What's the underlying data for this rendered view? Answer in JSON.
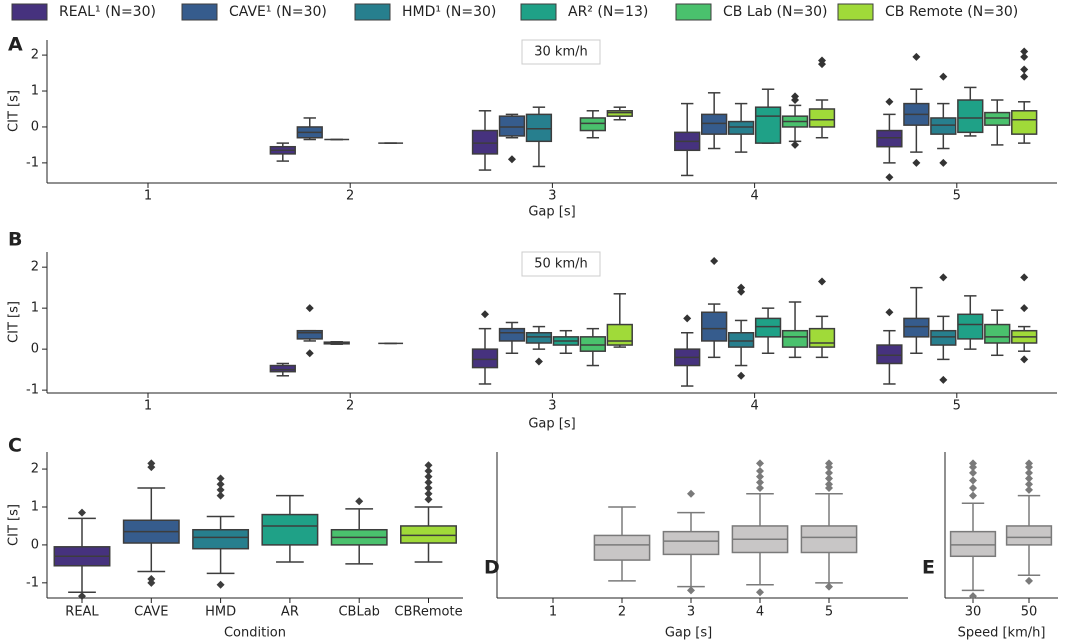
{
  "chart_data": [
    {
      "type": "box",
      "label": "A",
      "annotation": "30 km/h",
      "xlabel": "Gap [s]",
      "ylabel": "CIT [s]",
      "categories": [
        "1",
        "2",
        "3",
        "4",
        "5"
      ],
      "ylim": [
        -1.56,
        2.42
      ],
      "yticks": [
        -1,
        0,
        1,
        2
      ],
      "series": [
        {
          "name": "REAL¹ (N=30)",
          "color": "#46327e",
          "boxes": [
            null,
            {
              "q1": -0.75,
              "med": -0.65,
              "q3": -0.55,
              "lo": -0.95,
              "hi": -0.45
            },
            {
              "q1": -0.75,
              "med": -0.45,
              "q3": -0.1,
              "lo": -1.2,
              "hi": 0.45
            },
            {
              "q1": -0.65,
              "med": -0.4,
              "q3": -0.15,
              "lo": -1.35,
              "hi": 0.65
            },
            {
              "q1": -0.55,
              "med": -0.3,
              "q3": -0.1,
              "lo": -1.0,
              "hi": 0.35,
              "out": [
                0.7,
                -1.4
              ]
            }
          ]
        },
        {
          "name": "CAVE¹ (N=30)",
          "color": "#365c8d",
          "boxes": [
            null,
            {
              "q1": -0.3,
              "med": -0.15,
              "q3": 0.0,
              "lo": -0.35,
              "hi": 0.25
            },
            {
              "q1": -0.25,
              "med": 0.0,
              "q3": 0.3,
              "lo": -0.3,
              "hi": 0.35,
              "out": [
                -0.9
              ]
            },
            {
              "q1": -0.2,
              "med": 0.1,
              "q3": 0.35,
              "lo": -0.6,
              "hi": 0.95
            },
            {
              "q1": 0.05,
              "med": 0.35,
              "q3": 0.65,
              "lo": -0.7,
              "hi": 1.05,
              "out": [
                1.95,
                -1.0
              ]
            }
          ]
        },
        {
          "name": "HMD¹ (N=30)",
          "color": "#277f8e",
          "boxes": [
            null,
            {
              "q1": -0.35,
              "med": -0.35,
              "q3": -0.35,
              "lo": -0.35,
              "hi": -0.35
            },
            {
              "q1": -0.4,
              "med": -0.05,
              "q3": 0.35,
              "lo": -1.1,
              "hi": 0.55
            },
            {
              "q1": -0.2,
              "med": 0.0,
              "q3": 0.15,
              "lo": -0.7,
              "hi": 0.65
            },
            {
              "q1": -0.2,
              "med": 0.05,
              "q3": 0.25,
              "lo": -0.6,
              "hi": 0.65,
              "out": [
                1.4,
                -1.0
              ]
            }
          ]
        },
        {
          "name": "AR² (N=13)",
          "color": "#1fa187",
          "boxes": [
            null,
            null,
            null,
            {
              "q1": -0.45,
              "med": 0.3,
              "q3": 0.55,
              "lo": -0.45,
              "hi": 1.05
            },
            {
              "q1": -0.15,
              "med": 0.25,
              "q3": 0.75,
              "lo": -0.25,
              "hi": 1.1
            }
          ]
        },
        {
          "name": "CB Lab (N=30)",
          "color": "#4ac16d",
          "boxes": [
            null,
            {
              "q1": -0.45,
              "med": -0.45,
              "q3": -0.45,
              "lo": -0.45,
              "hi": -0.45
            },
            {
              "q1": -0.1,
              "med": 0.1,
              "q3": 0.25,
              "lo": -0.3,
              "hi": 0.45
            },
            {
              "q1": 0.0,
              "med": 0.15,
              "q3": 0.3,
              "lo": -0.4,
              "hi": 0.6,
              "out": [
                0.75,
                0.85,
                -0.5
              ]
            },
            {
              "q1": 0.05,
              "med": 0.25,
              "q3": 0.4,
              "lo": -0.5,
              "hi": 0.75
            }
          ]
        },
        {
          "name": "CB Remote (N=30)",
          "color": "#a0da39",
          "boxes": [
            null,
            null,
            {
              "q1": 0.3,
              "med": 0.4,
              "q3": 0.45,
              "lo": 0.2,
              "hi": 0.55
            },
            {
              "q1": 0.0,
              "med": 0.2,
              "q3": 0.5,
              "lo": -0.3,
              "hi": 0.75,
              "out": [
                1.75,
                1.85
              ]
            },
            {
              "q1": -0.2,
              "med": 0.2,
              "q3": 0.45,
              "lo": -0.45,
              "hi": 0.7,
              "out": [
                1.4,
                1.6,
                1.95,
                2.1
              ]
            }
          ]
        }
      ]
    },
    {
      "type": "box",
      "label": "B",
      "annotation": "50 km/h",
      "xlabel": "Gap [s]",
      "ylabel": "CIT [s]",
      "categories": [
        "1",
        "2",
        "3",
        "4",
        "5"
      ],
      "ylim": [
        -1.07,
        2.37
      ],
      "yticks": [
        -1,
        0,
        1,
        2
      ],
      "series": [
        {
          "color": "#46327e",
          "boxes": [
            null,
            {
              "q1": -0.55,
              "med": -0.5,
              "q3": -0.4,
              "lo": -0.65,
              "hi": -0.35
            },
            {
              "q1": -0.45,
              "med": -0.25,
              "q3": 0.0,
              "lo": -0.85,
              "hi": 0.5,
              "out": [
                0.85
              ]
            },
            {
              "q1": -0.4,
              "med": -0.2,
              "q3": 0.0,
              "lo": -0.9,
              "hi": 0.4,
              "out": [
                0.75
              ]
            },
            {
              "q1": -0.35,
              "med": -0.15,
              "q3": 0.1,
              "lo": -0.85,
              "hi": 0.45,
              "out": [
                0.9
              ]
            }
          ]
        },
        {
          "color": "#365c8d",
          "boxes": [
            null,
            {
              "q1": 0.25,
              "med": 0.4,
              "q3": 0.45,
              "lo": 0.2,
              "hi": 0.45,
              "out": [
                1.0,
                -0.1
              ]
            },
            {
              "q1": 0.2,
              "med": 0.4,
              "q3": 0.5,
              "lo": -0.1,
              "hi": 0.65
            },
            {
              "q1": 0.2,
              "med": 0.5,
              "q3": 0.9,
              "lo": -0.2,
              "hi": 1.1,
              "out": [
                2.15
              ]
            },
            {
              "q1": 0.3,
              "med": 0.55,
              "q3": 0.75,
              "lo": -0.1,
              "hi": 1.5
            }
          ]
        },
        {
          "color": "#277f8e",
          "boxes": [
            null,
            {
              "q1": 0.13,
              "med": 0.15,
              "q3": 0.17,
              "lo": 0.12,
              "hi": 0.18
            },
            {
              "q1": 0.15,
              "med": 0.3,
              "q3": 0.4,
              "lo": 0.0,
              "hi": 0.55,
              "out": [
                -0.3
              ]
            },
            {
              "q1": 0.05,
              "med": 0.2,
              "q3": 0.4,
              "lo": -0.4,
              "hi": 0.7,
              "out": [
                1.4,
                1.5,
                -0.65
              ]
            },
            {
              "q1": 0.1,
              "med": 0.3,
              "q3": 0.45,
              "lo": -0.25,
              "hi": 0.8,
              "out": [
                1.75,
                -0.75
              ]
            }
          ]
        },
        {
          "color": "#1fa187",
          "boxes": [
            null,
            null,
            {
              "q1": 0.1,
              "med": 0.2,
              "q3": 0.3,
              "lo": -0.1,
              "hi": 0.45
            },
            {
              "q1": 0.3,
              "med": 0.55,
              "q3": 0.75,
              "lo": -0.1,
              "hi": 1.0
            },
            {
              "q1": 0.25,
              "med": 0.6,
              "q3": 0.85,
              "lo": 0.0,
              "hi": 1.3
            }
          ]
        },
        {
          "color": "#4ac16d",
          "boxes": [
            null,
            {
              "q1": 0.14,
              "med": 0.14,
              "q3": 0.14,
              "lo": 0.14,
              "hi": 0.14
            },
            {
              "q1": -0.05,
              "med": 0.1,
              "q3": 0.3,
              "lo": -0.4,
              "hi": 0.5
            },
            {
              "q1": 0.05,
              "med": 0.3,
              "q3": 0.45,
              "lo": -0.2,
              "hi": 1.15
            },
            {
              "q1": 0.15,
              "med": 0.3,
              "q3": 0.6,
              "lo": -0.15,
              "hi": 0.95
            }
          ]
        },
        {
          "color": "#a0da39",
          "boxes": [
            null,
            null,
            {
              "q1": 0.1,
              "med": 0.2,
              "q3": 0.6,
              "lo": 0.05,
              "hi": 1.35
            },
            {
              "q1": 0.05,
              "med": 0.15,
              "q3": 0.5,
              "lo": -0.2,
              "hi": 0.8,
              "out": [
                1.65
              ]
            },
            {
              "q1": 0.15,
              "med": 0.3,
              "q3": 0.45,
              "lo": -0.05,
              "hi": 0.55,
              "out": [
                1.0,
                1.75,
                -0.25
              ]
            }
          ]
        }
      ]
    },
    {
      "type": "box",
      "label": "C",
      "xlabel": "Condition",
      "ylabel": "CIT [s]",
      "categories": [
        "REAL",
        "CAVE",
        "HMD",
        "AR",
        "CBLab",
        "CBRemote"
      ],
      "ylim": [
        -1.4,
        2.45
      ],
      "yticks": [
        -1,
        0,
        1,
        2
      ],
      "colors": [
        "#46327e",
        "#365c8d",
        "#277f8e",
        "#1fa187",
        "#4ac16d",
        "#a0da39"
      ],
      "boxes": [
        {
          "q1": -0.55,
          "med": -0.3,
          "q3": -0.05,
          "lo": -1.25,
          "hi": 0.7,
          "out": [
            0.85,
            -1.35
          ]
        },
        {
          "q1": 0.05,
          "med": 0.35,
          "q3": 0.65,
          "lo": -0.7,
          "hi": 1.5,
          "out": [
            2.05,
            2.15,
            -0.9,
            -1.0
          ]
        },
        {
          "q1": -0.1,
          "med": 0.2,
          "q3": 0.4,
          "lo": -0.75,
          "hi": 0.75,
          "out": [
            1.3,
            1.45,
            1.6,
            1.75,
            -1.05
          ]
        },
        {
          "q1": 0.0,
          "med": 0.5,
          "q3": 0.8,
          "lo": -0.45,
          "hi": 1.3
        },
        {
          "q1": 0.0,
          "med": 0.2,
          "q3": 0.4,
          "lo": -0.5,
          "hi": 0.95,
          "out": [
            1.15
          ]
        },
        {
          "q1": 0.05,
          "med": 0.25,
          "q3": 0.5,
          "lo": -0.45,
          "hi": 1.0,
          "out": [
            1.2,
            1.35,
            1.5,
            1.65,
            1.8,
            1.95,
            2.1
          ]
        }
      ]
    },
    {
      "type": "box",
      "label": "D",
      "xlabel": "Gap [s]",
      "categories": [
        "1",
        "2",
        "3",
        "4",
        "5"
      ],
      "ylim": [
        -1.4,
        2.45
      ],
      "color": "#c8c6c6",
      "boxes": [
        null,
        {
          "q1": -0.4,
          "med": 0.0,
          "q3": 0.25,
          "lo": -0.95,
          "hi": 1.0
        },
        {
          "q1": -0.25,
          "med": 0.1,
          "q3": 0.35,
          "lo": -1.1,
          "hi": 0.85,
          "out": [
            1.35,
            -1.2
          ]
        },
        {
          "q1": -0.2,
          "med": 0.15,
          "q3": 0.5,
          "lo": -1.05,
          "hi": 1.35,
          "out": [
            1.5,
            1.65,
            1.8,
            1.95,
            2.15,
            -1.25
          ]
        },
        {
          "q1": -0.2,
          "med": 0.2,
          "q3": 0.5,
          "lo": -1.0,
          "hi": 1.35,
          "out": [
            1.5,
            1.6,
            1.75,
            1.9,
            2.05,
            2.15,
            -1.1
          ]
        }
      ]
    },
    {
      "type": "box",
      "label": "E",
      "xlabel": "Speed [km/h]",
      "categories": [
        "30",
        "50"
      ],
      "ylim": [
        -1.4,
        2.45
      ],
      "color": "#c8c6c6",
      "boxes": [
        {
          "q1": -0.3,
          "med": 0.0,
          "q3": 0.35,
          "lo": -1.2,
          "hi": 1.1,
          "out": [
            1.3,
            1.5,
            1.7,
            1.9,
            2.05,
            2.15,
            -1.35
          ]
        },
        {
          "q1": 0.0,
          "med": 0.2,
          "q3": 0.5,
          "lo": -0.8,
          "hi": 1.3,
          "out": [
            1.45,
            1.6,
            1.75,
            1.9,
            2.05,
            2.15,
            -0.95
          ]
        }
      ]
    }
  ]
}
